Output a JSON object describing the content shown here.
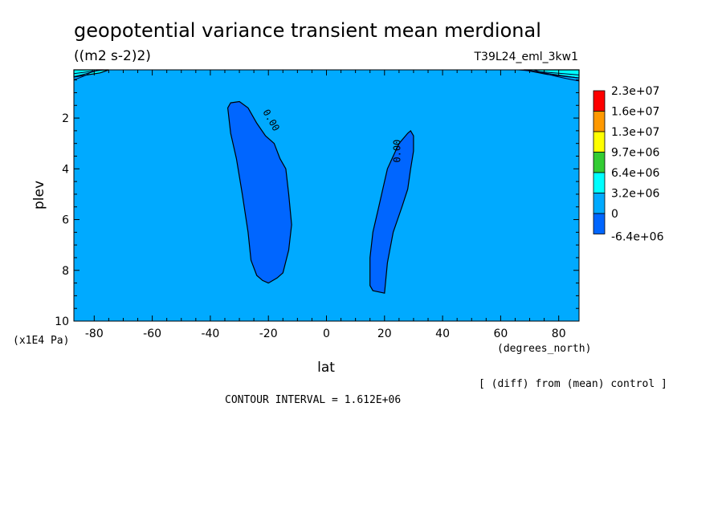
{
  "chart_data": {
    "type": "heatmap",
    "title": "geopotential variance transient mean merdional",
    "units": "((m2 s-2)2)",
    "run_label": "T39L24_eml_3kw1",
    "xlabel": "lat",
    "xunits": "(degrees_north)",
    "ylabel": "plev",
    "yunits": "(x1E4 Pa)",
    "xlim": [
      -87,
      87
    ],
    "ylim": [
      10,
      0.1
    ],
    "xticks": [
      -80,
      -60,
      -40,
      -20,
      0,
      20,
      40,
      60,
      80
    ],
    "xtick_labels": [
      "-80",
      "-60",
      "-40",
      "-20",
      "0",
      "20",
      "40",
      "60",
      "80"
    ],
    "yticks": [
      2,
      4,
      6,
      8,
      10
    ],
    "ytick_labels": [
      "2",
      "4",
      "6",
      "8",
      "10"
    ],
    "legend": {
      "placement": "right",
      "levels": [
        "2.3e+07",
        "1.6e+07",
        "1.3e+07",
        "9.7e+06",
        "6.4e+06",
        "3.2e+06",
        "0",
        "-6.4e+06"
      ],
      "colors": [
        "#ff0000",
        "#ff9900",
        "#ffff00",
        "#33cc33",
        "#00ffff",
        "#00aaff",
        "#0066ff"
      ]
    },
    "background_color": "#00aaff",
    "regions": [
      {
        "color": "#0066ff",
        "label": "0.00",
        "points": [
          [
            -34,
            1.6
          ],
          [
            -33,
            1.4
          ],
          [
            -30,
            1.35
          ],
          [
            -27,
            1.6
          ],
          [
            -24,
            2.2
          ],
          [
            -21,
            2.7
          ],
          [
            -18,
            3.0
          ],
          [
            -16,
            3.6
          ],
          [
            -14,
            4.0
          ],
          [
            -13,
            5.0
          ],
          [
            -12,
            6.2
          ],
          [
            -13,
            7.2
          ],
          [
            -15,
            8.1
          ],
          [
            -17,
            8.3
          ],
          [
            -20,
            8.5
          ],
          [
            -22,
            8.4
          ],
          [
            -24,
            8.2
          ],
          [
            -26,
            7.6
          ],
          [
            -27,
            6.5
          ],
          [
            -29,
            5.0
          ],
          [
            -31,
            3.6
          ],
          [
            -33,
            2.6
          ]
        ]
      },
      {
        "color": "#0066ff",
        "label": "0.00",
        "points": [
          [
            29,
            2.5
          ],
          [
            28,
            2.6
          ],
          [
            25,
            3.0
          ],
          [
            23,
            3.5
          ],
          [
            21,
            4.0
          ],
          [
            19,
            5.0
          ],
          [
            18,
            5.5
          ],
          [
            16,
            6.5
          ],
          [
            15,
            7.5
          ],
          [
            15,
            8.6
          ],
          [
            16,
            8.8
          ],
          [
            20,
            8.9
          ],
          [
            21,
            7.7
          ],
          [
            23,
            6.5
          ],
          [
            26,
            5.5
          ],
          [
            28,
            4.8
          ],
          [
            29,
            4.0
          ],
          [
            30,
            3.3
          ],
          [
            30,
            2.7
          ]
        ]
      },
      {
        "color": "#00ffff",
        "points": [
          [
            -87,
            0.1
          ],
          [
            -75,
            0.1
          ],
          [
            -78,
            0.22
          ],
          [
            -87,
            0.38
          ]
        ]
      },
      {
        "color": "#00ffff",
        "points": [
          [
            87,
            0.1
          ],
          [
            68,
            0.1
          ],
          [
            76,
            0.28
          ],
          [
            87,
            0.42
          ]
        ]
      }
    ],
    "annotations": [
      "[ (diff) from (mean) control ]",
      "CONTOUR INTERVAL = 1.612E+06"
    ]
  }
}
